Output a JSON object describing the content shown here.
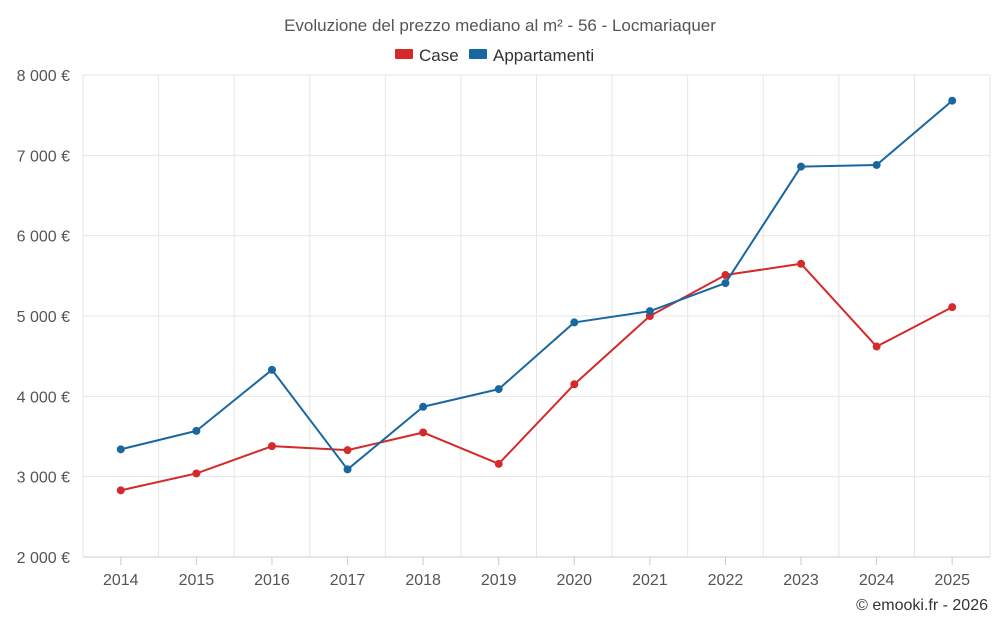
{
  "chart_data": {
    "type": "line",
    "title": "Evoluzione del prezzo mediano al m² - 56 - Locmariaquer",
    "categories": [
      "2014",
      "2015",
      "2016",
      "2017",
      "2018",
      "2019",
      "2020",
      "2021",
      "2022",
      "2023",
      "2024",
      "2025"
    ],
    "series": [
      {
        "name": "Case",
        "color": "#d42a2a",
        "values": [
          2830,
          3040,
          3380,
          3330,
          3550,
          3160,
          4150,
          5000,
          5510,
          5650,
          4620,
          5110
        ]
      },
      {
        "name": "Appartamenti",
        "color": "#1967a0",
        "values": [
          3340,
          3570,
          4330,
          3090,
          3870,
          4090,
          4920,
          5060,
          5410,
          6860,
          6880,
          7680
        ]
      }
    ],
    "ylim": [
      2000,
      8000
    ],
    "yticks": [
      2000,
      3000,
      4000,
      5000,
      6000,
      7000,
      8000
    ],
    "ytick_labels": [
      "2 000 €",
      "3 000 €",
      "4 000 €",
      "5 000 €",
      "6 000 €",
      "7 000 €",
      "8 000 €"
    ],
    "grid": true,
    "legend": "top-center",
    "credit": "© emooki.fr - 2026"
  }
}
